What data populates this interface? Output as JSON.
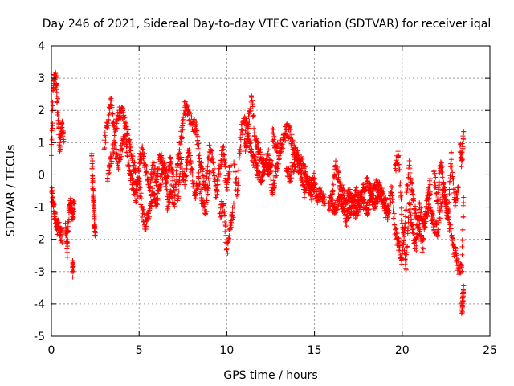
{
  "chart_data": {
    "type": "scatter",
    "title": "Day 246 of 2021, Sidereal Day-to-day VTEC variation (SDTVAR) for receiver iqal",
    "xlabel": "GPS time / hours",
    "ylabel": "SDTVAR / TECUs",
    "xlim": [
      0,
      25
    ],
    "ylim": [
      -5,
      4
    ],
    "xticks": [
      "0",
      "5",
      "10",
      "15",
      "20",
      "25"
    ],
    "yticks": [
      "-5",
      "-4",
      "-3",
      "-2",
      "-1",
      "0",
      "1",
      "2",
      "3",
      "4"
    ],
    "grid": true,
    "marker": "plus",
    "marker_color": "#ff0000",
    "series": [
      {
        "name": "SDTVAR",
        "segments": [
          {
            "x": [
              0.0,
              0.1,
              0.2,
              0.3,
              0.4,
              0.5,
              0.6,
              0.7
            ],
            "y": [
              0.6,
              2.6,
              3.1,
              2.8,
              1.6,
              0.8,
              1.6,
              1.1
            ]
          },
          {
            "x": [
              0.0,
              0.1,
              0.2,
              0.3,
              0.4,
              0.5,
              0.6
            ],
            "y": [
              -0.5,
              -0.9,
              -1.3,
              -1.7,
              -1.6,
              -1.8,
              -1.9
            ]
          },
          {
            "x": [
              0.8,
              0.9,
              1.0,
              1.1,
              1.2,
              1.3
            ],
            "y": [
              -1.5,
              -2.4,
              -1.1,
              -0.9,
              -1.3,
              -0.9
            ]
          },
          {
            "x": [
              1.2,
              1.25
            ],
            "y": [
              -2.8,
              -3.0
            ]
          },
          {
            "x": [
              2.3,
              2.35,
              2.4,
              2.45,
              2.5
            ],
            "y": [
              0.6,
              -0.1,
              -0.8,
              -1.3,
              -1.9
            ]
          },
          {
            "x": [
              3.0,
              3.2,
              3.4,
              3.6,
              3.8,
              4.0,
              4.2,
              4.4,
              4.6,
              4.8
            ],
            "y": [
              0.8,
              1.6,
              2.3,
              1.3,
              1.8,
              2.0,
              1.6,
              1.1,
              0.5,
              0.2
            ]
          },
          {
            "x": [
              3.2,
              3.4,
              3.6,
              3.8,
              4.0,
              4.2,
              4.4,
              4.6,
              4.8,
              5.0
            ],
            "y": [
              -0.1,
              0.5,
              0.9,
              0.3,
              0.8,
              1.2,
              0.4,
              -0.3,
              -0.5,
              0.1
            ]
          },
          {
            "x": [
              4.8,
              5.0,
              5.2,
              5.4,
              5.6,
              5.8,
              6.0,
              6.2,
              6.4,
              6.6
            ],
            "y": [
              -0.8,
              -0.2,
              -1.2,
              -1.6,
              -1.0,
              -0.6,
              -0.9,
              -0.3,
              0.2,
              -0.5
            ]
          },
          {
            "x": [
              5.0,
              5.2,
              5.4,
              5.6,
              5.8,
              6.0,
              6.2,
              6.4,
              6.6,
              6.8,
              7.0
            ],
            "y": [
              0.4,
              0.8,
              0.1,
              -0.4,
              0.3,
              -0.2,
              0.6,
              0.3,
              -0.1,
              0.5,
              -0.4
            ]
          },
          {
            "x": [
              6.6,
              6.8,
              7.0,
              7.2,
              7.4,
              7.6,
              7.8,
              8.0,
              8.2,
              8.4
            ],
            "y": [
              -1.0,
              -0.5,
              -0.9,
              0.3,
              1.2,
              2.1,
              1.9,
              1.6,
              1.5,
              0.9
            ]
          },
          {
            "x": [
              7.2,
              7.4,
              7.6,
              7.8,
              8.0,
              8.2,
              8.4,
              8.6,
              8.8,
              9.0
            ],
            "y": [
              -0.8,
              0.4,
              -0.3,
              0.7,
              0.2,
              -0.6,
              -0.1,
              -0.9,
              -1.2,
              0.1
            ]
          },
          {
            "x": [
              8.4,
              8.6,
              8.8,
              9.0,
              9.2,
              9.4,
              9.6,
              9.8,
              10.0,
              10.2
            ],
            "y": [
              0.6,
              0.1,
              -0.5,
              0.9,
              0.4,
              -0.7,
              0.2,
              0.8,
              -0.4,
              0.3
            ]
          },
          {
            "x": [
              9.6,
              9.8,
              10.0,
              10.2,
              10.4
            ],
            "y": [
              -1.2,
              -0.9,
              -2.3,
              -1.7,
              -1.0
            ]
          },
          {
            "x": [
              10.4,
              10.6,
              10.8,
              11.0,
              11.2,
              11.4,
              11.6,
              11.8,
              12.0,
              12.2,
              12.4,
              12.6
            ],
            "y": [
              0.4,
              -0.6,
              1.3,
              1.6,
              1.5,
              2.4,
              1.2,
              0.8,
              0.5,
              0.3,
              0.2,
              0.4
            ]
          },
          {
            "x": [
              11.0,
              11.2,
              11.4,
              11.6,
              11.8,
              12.0,
              12.2,
              12.4,
              12.6,
              12.8,
              13.0
            ],
            "y": [
              0.9,
              1.1,
              0.7,
              0.4,
              0.1,
              -0.2,
              0.3,
              0.6,
              -0.6,
              0.1,
              0.5
            ]
          },
          {
            "x": [
              12.6,
              12.8,
              13.0,
              13.2,
              13.4,
              13.6,
              13.8,
              14.0,
              14.2,
              14.4,
              14.6,
              14.8,
              15.0,
              15.2,
              15.4,
              15.6
            ],
            "y": [
              1.3,
              0.9,
              0.7,
              1.1,
              1.4,
              1.3,
              0.8,
              0.6,
              0.4,
              0.2,
              -0.3,
              -0.6,
              -0.4,
              -0.7,
              -0.5,
              -0.9
            ]
          },
          {
            "x": [
              13.4,
              13.6,
              13.8,
              14.0,
              14.2,
              14.4,
              14.6,
              14.8,
              15.0
            ],
            "y": [
              0.2,
              -0.1,
              0.3,
              0.5,
              0.0,
              -0.5,
              -0.2,
              -0.3,
              -0.1
            ]
          },
          {
            "x": [
              15.8,
              16.0,
              16.2,
              16.4,
              16.6,
              16.8,
              17.0,
              17.2,
              17.4,
              17.6,
              17.8,
              18.0,
              18.2,
              18.4,
              18.6,
              18.8,
              19.0,
              19.2
            ],
            "y": [
              -1.0,
              -0.6,
              0.3,
              -0.2,
              -0.9,
              -1.4,
              -1.2,
              -0.8,
              -0.6,
              -1.0,
              -0.4,
              -0.2,
              -0.5,
              -0.9,
              -0.7,
              -0.5,
              -1.1,
              -1.2
            ]
          },
          {
            "x": [
              16.0,
              16.2,
              16.4,
              16.6,
              16.8,
              17.0,
              17.2,
              17.4,
              17.6,
              17.8,
              18.0,
              18.2,
              18.4,
              18.6,
              18.8,
              19.0
            ],
            "y": [
              -0.9,
              -1.1,
              -0.7,
              -0.5,
              -0.8,
              -0.6,
              -1.0,
              -1.2,
              -0.7,
              -0.9,
              -1.1,
              -0.8,
              -0.4,
              -0.3,
              -0.6,
              -0.8
            ]
          },
          {
            "x": [
              19.0,
              19.2,
              19.4,
              19.6,
              19.8,
              20.0,
              20.2,
              20.4,
              20.6,
              20.8,
              21.0,
              21.2,
              21.4,
              21.6
            ],
            "y": [
              -0.8,
              -1.2,
              -0.5,
              -1.7,
              -2.2,
              -2.6,
              -1.1,
              0.3,
              -0.6,
              -1.3,
              -1.7,
              -2.3,
              -0.8,
              -0.3
            ]
          },
          {
            "x": [
              19.6,
              19.8,
              20.0,
              20.2,
              20.4,
              20.6,
              20.8,
              21.0,
              21.2,
              21.4,
              21.6
            ],
            "y": [
              0.2,
              0.6,
              -1.5,
              -2.9,
              -0.9,
              -1.8,
              -2.2,
              -1.0,
              -1.5,
              -1.2,
              -0.6
            ]
          },
          {
            "x": [
              21.6,
              21.8,
              22.0,
              22.2,
              22.4,
              22.6,
              22.8,
              23.0,
              23.2,
              23.4,
              23.5
            ],
            "y": [
              -1.1,
              -1.5,
              -1.8,
              -0.9,
              -0.4,
              -1.2,
              -1.9,
              -2.4,
              -2.9,
              -3.0,
              -0.7
            ]
          },
          {
            "x": [
              21.8,
              22.0,
              22.2,
              22.4,
              22.6,
              22.8,
              23.0,
              23.2
            ],
            "y": [
              0.1,
              -0.8,
              0.4,
              -0.6,
              -1.3,
              0.7,
              -1.0,
              -0.4
            ]
          },
          {
            "x": [
              23.3,
              23.4,
              23.5
            ],
            "y": [
              0.9,
              0.4,
              1.3
            ]
          },
          {
            "x": [
              23.4,
              23.45,
              23.5
            ],
            "y": [
              -4.2,
              -3.9,
              -3.6
            ]
          }
        ]
      }
    ]
  }
}
